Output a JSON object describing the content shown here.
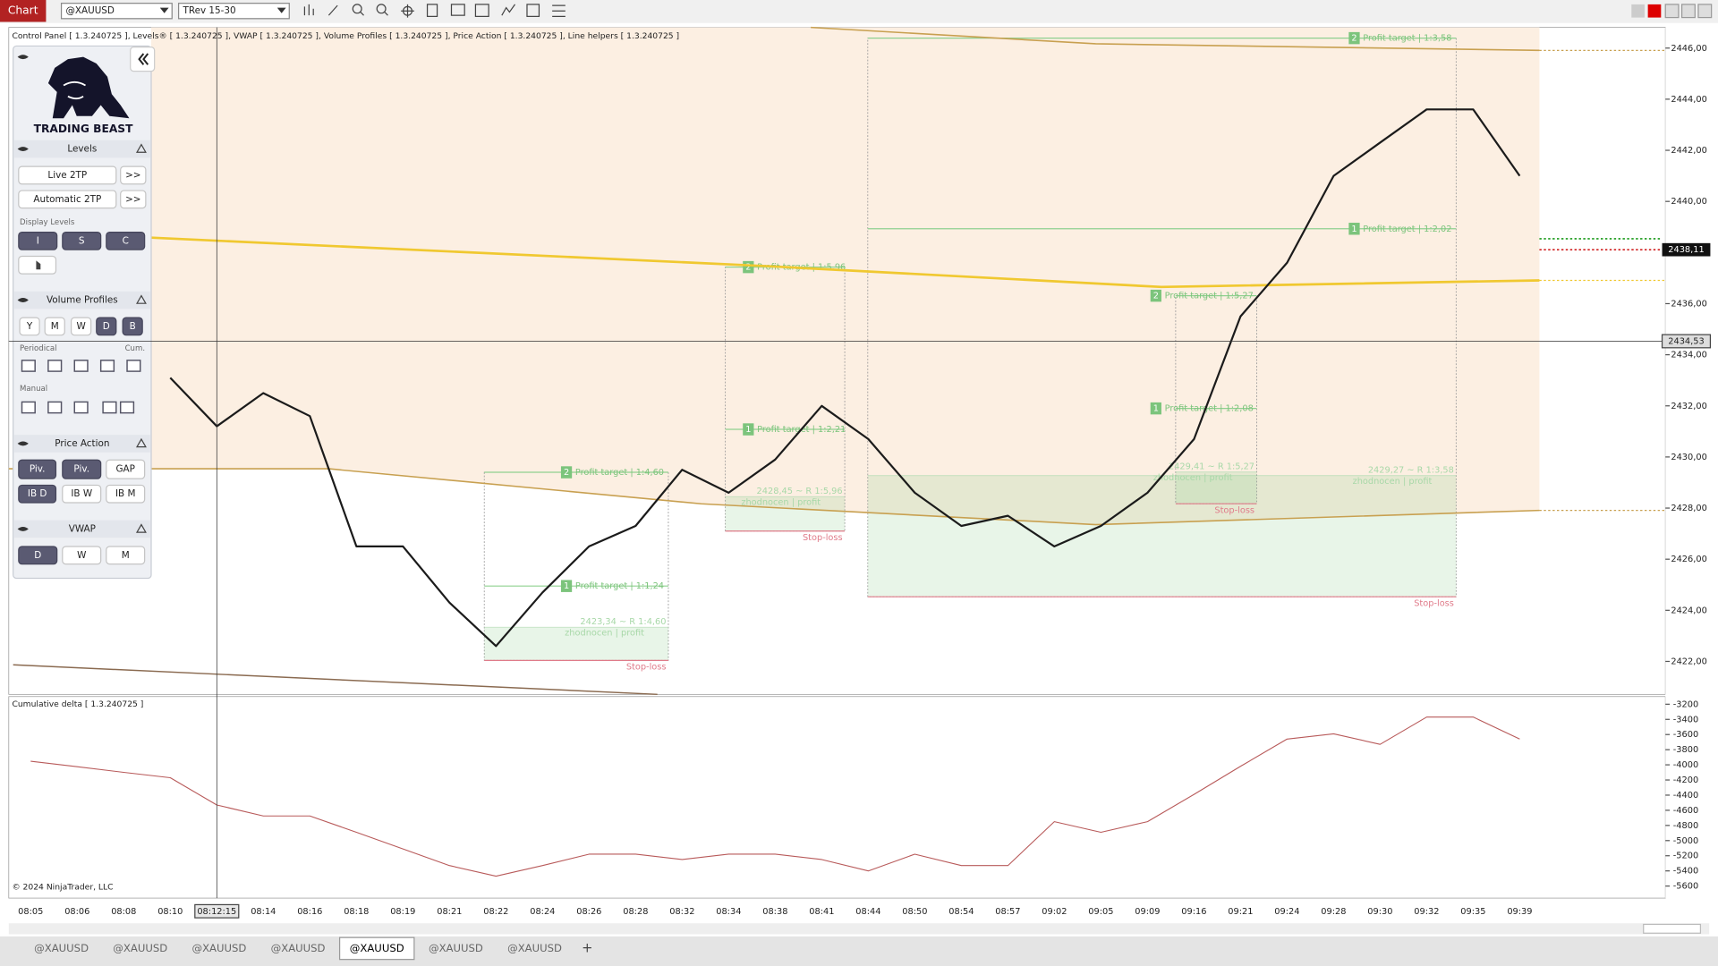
{
  "toolbar": {
    "app": "Chart",
    "instrument": "@XAUUSD",
    "bar_type": "TRev 15-30"
  },
  "header": {
    "indicators": "Control Panel [ 1.3.240725 ], Levels® [ 1.3.240725 ], VWAP [ 1.3.240725 ], Volume Profiles [ 1.3.240725 ], Price Action [ 1.3.240725 ], Line helpers [ 1.3.240725 ]"
  },
  "panel": {
    "brand": "TRADING BEAST",
    "levels": {
      "title": "Levels",
      "live": "Live 2TP",
      "auto": "Automatic 2TP",
      "more": ">>",
      "display": "Display Levels",
      "buttons": [
        "I",
        "S",
        "C"
      ]
    },
    "volume_profiles": {
      "title": "Volume Profiles",
      "buttons": [
        "Y",
        "M",
        "W",
        "D",
        "B"
      ],
      "periodical": "Periodical",
      "cumulative": "Cum.",
      "manual": "Manual"
    },
    "price_action": {
      "title": "Price Action",
      "buttons": [
        "Piv.",
        "Piv.",
        "GAP",
        "IB D",
        "IB W",
        "IB M"
      ]
    },
    "vwap": {
      "title": "VWAP",
      "buttons": [
        "D",
        "W",
        "M"
      ]
    }
  },
  "time_axis": {
    "labels": [
      "08:05",
      "08:06",
      "08:08",
      "08:10",
      "08:12:15",
      "08:14",
      "08:16",
      "08:18",
      "08:19",
      "08:21",
      "08:22",
      "08:24",
      "08:26",
      "08:28",
      "08:32",
      "08:34",
      "08:38",
      "08:41",
      "08:44",
      "08:50",
      "08:54",
      "08:57",
      "09:02",
      "09:05",
      "09:09",
      "09:16",
      "09:21",
      "09:24",
      "09:28",
      "09:30",
      "09:32",
      "09:35",
      "09:39"
    ]
  },
  "price_chart": {
    "ylim": [
      2420.71,
      2446.81
    ],
    "yticks": [
      {
        "value": 2446,
        "label": "2446,00"
      },
      {
        "value": 2444,
        "label": "2444,00"
      },
      {
        "value": 2442,
        "label": "2442,00"
      },
      {
        "value": 2440,
        "label": "2440,00"
      },
      {
        "value": 2438,
        "label": "2438,00"
      },
      {
        "value": 2436,
        "label": "2436,00"
      },
      {
        "value": 2434,
        "label": "2434,00"
      },
      {
        "value": 2432,
        "label": "2432,00"
      },
      {
        "value": 2430,
        "label": "2430,00"
      },
      {
        "value": 2428,
        "label": "2428,00"
      },
      {
        "value": 2426,
        "label": "2426,00"
      },
      {
        "value": 2424,
        "label": "2424,00"
      },
      {
        "value": 2422,
        "label": "2422,00"
      }
    ],
    "closes": [
      null,
      null,
      null,
      2433.1,
      2431.2,
      2432.5,
      2431.6,
      2426.5,
      2426.5,
      2424.3,
      2422.6,
      2424.7,
      2426.5,
      2427.3,
      2429.5,
      2428.6,
      2429.9,
      2432.0,
      2430.7,
      2428.6,
      2427.3,
      2427.7,
      2426.5,
      2427.3,
      2428.6,
      2430.7,
      2435.5,
      2437.6,
      2441.0,
      2442.3,
      2443.6,
      2443.6,
      2441.0
    ],
    "last_price": {
      "value": 2438.11,
      "label": "2438,11"
    },
    "crosshair": {
      "value": 2434.53,
      "label": "2434,53"
    },
    "trades": [
      {
        "stop": 2422.04,
        "entry": 2423.34,
        "entry_label": "2423,34 ~ R 1:4,60",
        "result_label": "zhodnocen | profit",
        "stop_label": "Stop-loss",
        "targets": [
          {
            "badge": "1",
            "label": "Profit target | 1:1,24",
            "price": 2424.95
          },
          {
            "badge": "2",
            "label": "Profit target | 1:4,60",
            "price": 2429.4
          }
        ]
      },
      {
        "stop": 2427.1,
        "entry": 2428.45,
        "entry_label": "2428,45 ~ R 1:5,96",
        "result_label": "zhodnocen | profit",
        "stop_label": "Stop-loss",
        "targets": [
          {
            "badge": "1",
            "label": "Profit target | 1:2,21",
            "price": 2431.08
          },
          {
            "badge": "2",
            "label": "Profit target | 1:5,96",
            "price": 2437.43
          }
        ]
      },
      {
        "stop": 2424.53,
        "entry": 2429.27,
        "entry_label": "2429,27 ~ R 1:3,58",
        "result_label": "zhodnocen | profit",
        "stop_label": "Stop-loss",
        "targets": [
          {
            "badge": "1",
            "label": "Profit target | 1:2,02",
            "price": 2438.93
          },
          {
            "badge": "2",
            "label": "Profit target | 1:3,58",
            "price": 2446.39
          }
        ]
      },
      {
        "stop": 2428.17,
        "entry": 2429.41,
        "entry_label": "2429,41 ~ R 1:5,27",
        "result_label": "zhodnocen | profit",
        "stop_label": "Stop-loss",
        "targets": [
          {
            "badge": "1",
            "label": "Profit target | 1:2,08",
            "price": 2431.9
          },
          {
            "badge": "2",
            "label": "Profit target | 1:5,27",
            "price": 2436.31
          }
        ]
      }
    ]
  },
  "delta_chart": {
    "title": "Cumulative delta [ 1.3.240725 ]",
    "copyright": "© 2024 NinjaTrader, LLC",
    "ylim": [
      -5759,
      -3099
    ],
    "yticks": [
      -3200,
      -3400,
      -3600,
      -3800,
      -4000,
      -4200,
      -4400,
      -4600,
      -4800,
      -5000,
      -5200,
      -5400,
      -5600
    ],
    "values": [
      -3952,
      -4024,
      -4100,
      -4170,
      -4530,
      -4675,
      -4675,
      -4890,
      -5110,
      -5330,
      -5470,
      -5330,
      -5180,
      -5180,
      -5250,
      -5180,
      -5180,
      -5250,
      -5400,
      -5180,
      -5330,
      -5330,
      -4750,
      -4890,
      -4750,
      -4390,
      -4020,
      -3660,
      -3590,
      -3730,
      -3370,
      -3370,
      -3660
    ]
  },
  "tabs": [
    "@XAUUSD",
    "@XAUUSD",
    "@XAUUSD",
    "@XAUUSD",
    "@XAUUSD",
    "@XAUUSD",
    "@XAUUSD"
  ],
  "new_tab": "+"
}
